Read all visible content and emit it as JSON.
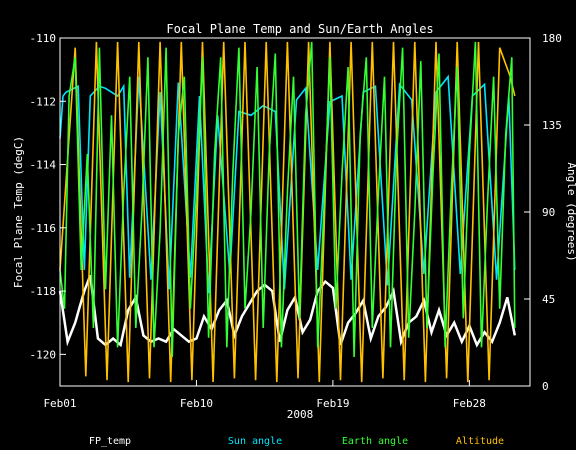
{
  "chart_data": {
    "type": "line",
    "title": "Focal Plane Temp and Sun/Earth Angles",
    "xlabel": "2008",
    "ylabel": "Focal Plane Temp (degC)",
    "y2label": "Angle (degrees)",
    "x_ticks": [
      "Feb01",
      "Feb10",
      "Feb19",
      "Feb28"
    ],
    "xlim_days": [
      1,
      32
    ],
    "ylim": [
      -121,
      -110
    ],
    "y_ticks": [
      -110,
      -112,
      -114,
      -116,
      -118,
      -120
    ],
    "y2lim": [
      0,
      180
    ],
    "y2_ticks": [
      0,
      45,
      90,
      135,
      180
    ],
    "colors": {
      "fp_temp": "#ffffff",
      "sun": "#00e5ff",
      "earth": "#33ff33",
      "altitude": "#ffc000",
      "axes": "#ffffff"
    },
    "series": [
      {
        "name": "FP_temp",
        "axis": "left",
        "color": "#ffffff",
        "x": [
          1.0,
          1.5,
          2.0,
          2.3,
          2.6,
          3.0,
          3.5,
          4.0,
          4.5,
          5.0,
          5.5,
          6.0,
          6.5,
          7.0,
          7.5,
          8.0,
          8.5,
          9.0,
          9.5,
          10.0,
          10.5,
          11.0,
          11.5,
          12.0,
          12.5,
          13.0,
          13.5,
          14.0,
          14.5,
          15.0,
          15.5,
          16.0,
          16.5,
          17.0,
          17.5,
          18.0,
          18.5,
          19.0,
          19.5,
          20.0,
          20.5,
          21.0,
          21.5,
          22.0,
          22.5,
          23.0,
          23.5,
          24.0,
          24.5,
          25.0,
          25.5,
          26.0,
          26.5,
          27.0,
          27.5,
          28.0,
          28.5,
          29.0,
          29.5,
          30.0,
          30.5,
          31.0
        ],
        "y": [
          -118.0,
          -119.6,
          -119.0,
          -118.5,
          -118.0,
          -117.5,
          -119.5,
          -119.7,
          -119.5,
          -119.7,
          -118.6,
          -118.2,
          -119.4,
          -119.6,
          -119.5,
          -119.6,
          -119.2,
          -119.4,
          -119.6,
          -119.5,
          -118.8,
          -119.2,
          -118.6,
          -118.3,
          -119.4,
          -118.8,
          -118.4,
          -118.0,
          -117.8,
          -118.0,
          -119.6,
          -118.6,
          -118.2,
          -119.3,
          -118.9,
          -118.0,
          -117.7,
          -117.9,
          -119.7,
          -119.0,
          -118.7,
          -118.3,
          -119.5,
          -118.8,
          -118.5,
          -118.0,
          -119.6,
          -119.0,
          -118.8,
          -118.3,
          -119.3,
          -118.6,
          -119.4,
          -119.0,
          -119.6,
          -119.1,
          -119.7,
          -119.3,
          -119.6,
          -119.0,
          -118.2,
          -119.4
        ]
      },
      {
        "name": "Sun angle",
        "axis": "right",
        "color": "#00e5ff",
        "x": [
          1.0,
          1.2,
          1.4,
          2.2,
          2.6,
          3.0,
          3.6,
          4.0,
          4.8,
          5.2,
          5.6,
          6.2,
          7.0,
          7.6,
          8.2,
          8.8,
          9.6,
          10.2,
          10.8,
          11.4,
          12.2,
          12.8,
          13.6,
          14.4,
          15.2,
          15.8,
          16.6,
          17.2,
          18.0,
          18.8,
          19.6,
          20.2,
          21.0,
          21.8,
          22.6,
          23.4,
          24.2,
          25.0,
          25.8,
          26.6,
          27.4,
          28.2,
          29.0,
          29.8,
          30.6,
          31.0
        ],
        "y": [
          128,
          150,
          152,
          155,
          60,
          150,
          155,
          154,
          150,
          155,
          56,
          160,
          55,
          152,
          50,
          157,
          56,
          150,
          48,
          140,
          58,
          142,
          140,
          145,
          142,
          50,
          148,
          154,
          60,
          147,
          150,
          55,
          152,
          155,
          52,
          156,
          148,
          58,
          152,
          160,
          58,
          150,
          156,
          55,
          150,
          60
        ]
      },
      {
        "name": "Earth angle",
        "axis": "right",
        "color": "#33ff33",
        "x": [
          1.0,
          1.3,
          1.6,
          2.0,
          2.4,
          2.8,
          3.2,
          3.6,
          4.0,
          4.4,
          4.8,
          5.2,
          5.6,
          6.0,
          6.4,
          6.8,
          7.2,
          7.6,
          8.0,
          8.4,
          8.8,
          9.2,
          9.6,
          10.0,
          10.4,
          10.8,
          11.2,
          11.6,
          12.0,
          12.4,
          12.8,
          13.2,
          13.6,
          14.0,
          14.4,
          14.8,
          15.2,
          15.6,
          16.0,
          16.4,
          16.8,
          17.2,
          17.6,
          18.0,
          18.4,
          18.8,
          19.2,
          19.6,
          20.0,
          20.4,
          20.8,
          21.2,
          21.6,
          22.0,
          22.4,
          22.8,
          23.2,
          23.6,
          24.0,
          24.4,
          24.8,
          25.2,
          25.6,
          26.0,
          26.4,
          26.8,
          27.2,
          27.6,
          28.0,
          28.4,
          28.8,
          29.2,
          29.6,
          30.0,
          30.4,
          30.8,
          31.0
        ],
        "y": [
          60,
          40,
          150,
          170,
          60,
          120,
          30,
          175,
          50,
          140,
          20,
          100,
          160,
          30,
          90,
          170,
          20,
          80,
          175,
          15,
          130,
          160,
          40,
          100,
          170,
          25,
          120,
          170,
          20,
          110,
          175,
          40,
          90,
          165,
          30,
          120,
          172,
          20,
          100,
          160,
          35,
          140,
          178,
          20,
          90,
          170,
          40,
          110,
          165,
          15,
          130,
          170,
          30,
          100,
          160,
          20,
          120,
          175,
          25,
          90,
          168,
          30,
          110,
          172,
          20,
          100,
          165,
          35,
          120,
          178,
          20,
          95,
          160,
          40,
          130,
          170,
          30
        ]
      },
      {
        "name": "Altitude",
        "axis": "right",
        "color": "#ffc000",
        "x": [
          1.0,
          2.0,
          2.7,
          3.4,
          4.1,
          4.8,
          5.5,
          6.2,
          6.9,
          7.6,
          8.3,
          9.0,
          9.7,
          10.4,
          11.1,
          11.8,
          12.5,
          13.2,
          13.9,
          14.6,
          15.3,
          16.0,
          16.7,
          17.4,
          18.1,
          18.8,
          19.5,
          20.2,
          20.9,
          21.6,
          22.3,
          23.0,
          23.7,
          24.4,
          25.1,
          25.8,
          26.5,
          27.2,
          27.9,
          28.6,
          29.3,
          30.0,
          30.7,
          31.0
        ],
        "y": [
          60,
          175,
          5,
          178,
          3,
          178,
          2,
          178,
          4,
          178,
          2,
          178,
          3,
          178,
          2,
          178,
          4,
          178,
          3,
          178,
          2,
          178,
          4,
          178,
          2,
          178,
          3,
          178,
          2,
          178,
          4,
          178,
          3,
          178,
          2,
          178,
          4,
          178,
          2,
          178,
          3,
          175,
          160,
          150
        ]
      }
    ],
    "legend": [
      "FP_temp",
      "Sun angle",
      "Earth angle",
      "Altitude"
    ],
    "legend_placement": "bottom",
    "grid": false
  }
}
